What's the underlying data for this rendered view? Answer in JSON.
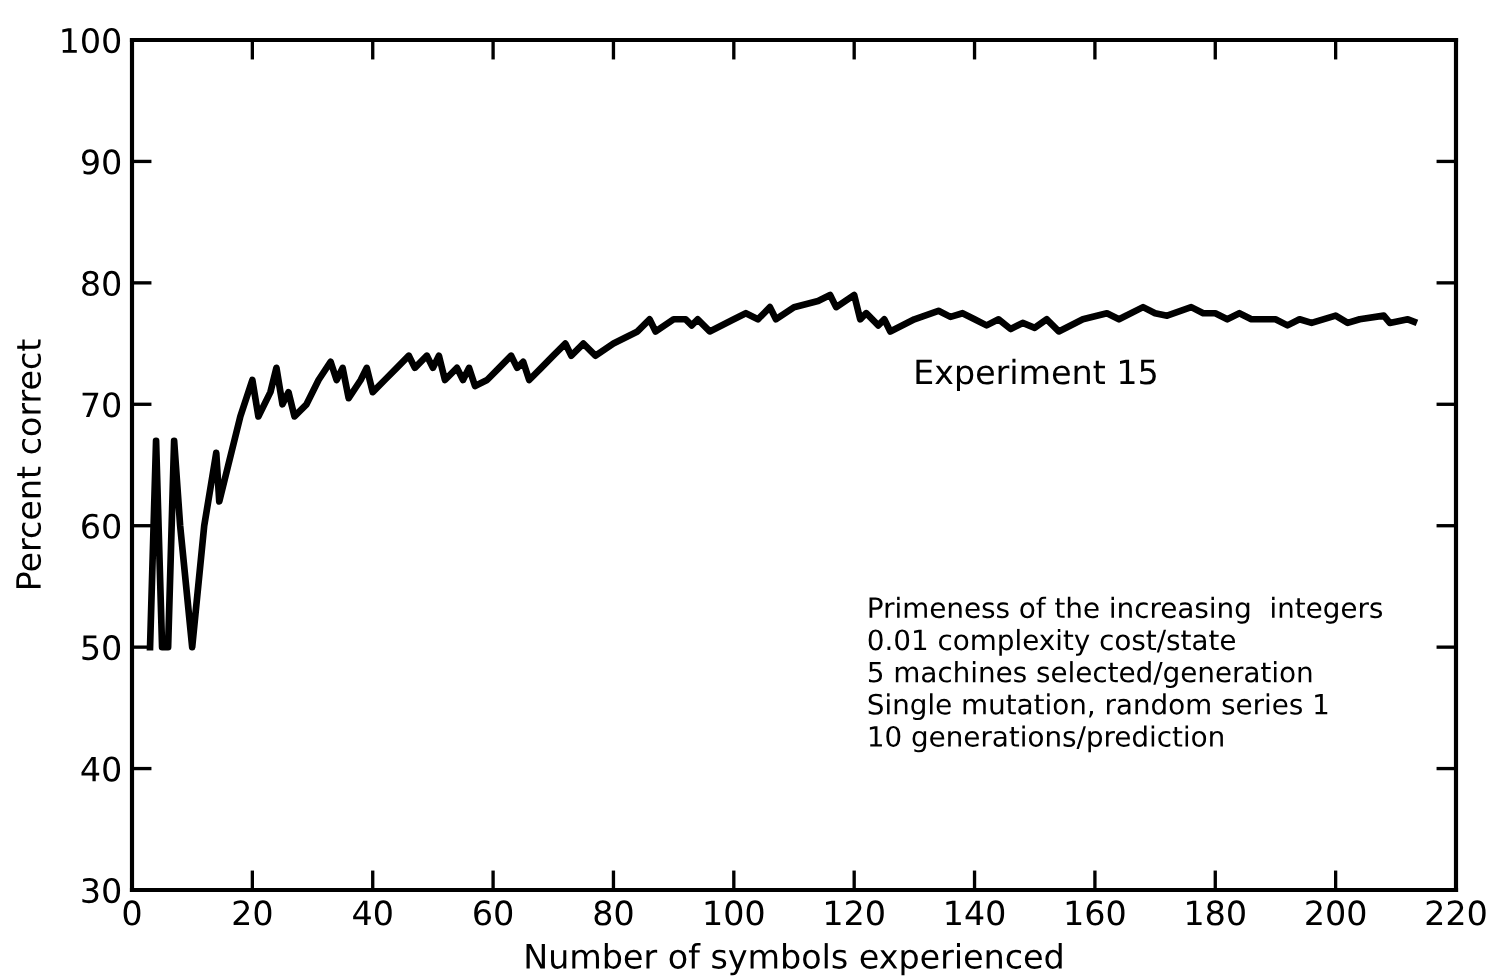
{
  "chart_data": {
    "type": "line",
    "xlabel": "Number of symbols experienced",
    "ylabel": "Percent correct",
    "xlim": [
      0,
      220
    ],
    "xticks": [
      0,
      20,
      40,
      60,
      80,
      100,
      120,
      140,
      160,
      180,
      200,
      220
    ],
    "ylim": [
      30,
      100
    ],
    "yticks": [
      30,
      40,
      50,
      60,
      70,
      80,
      90,
      100
    ],
    "grid": false,
    "marker": "none",
    "line_style": "solid",
    "series": [
      {
        "color": "#000000",
        "x": [
          3,
          4,
          5,
          6,
          7,
          8,
          9,
          10,
          12,
          14,
          14.5,
          16,
          18,
          20,
          21,
          23,
          24,
          25,
          26,
          27,
          29,
          31,
          33,
          34,
          35,
          36,
          38,
          39,
          40,
          42,
          44,
          46,
          47,
          49,
          50,
          51,
          52,
          54,
          55,
          56,
          57,
          59,
          61,
          63,
          64,
          65,
          66,
          68,
          70,
          72,
          73,
          75,
          77,
          80,
          84,
          86,
          87,
          90,
          92,
          93,
          94,
          96,
          100,
          102,
          104,
          106,
          107,
          110,
          114,
          116,
          117,
          120,
          121,
          122,
          124,
          125,
          126,
          130,
          134,
          136,
          138,
          140,
          142,
          144,
          146,
          148,
          150,
          152,
          154,
          158,
          162,
          164,
          168,
          170,
          172,
          176,
          178,
          180,
          182,
          184,
          186,
          190,
          192,
          194,
          196,
          200,
          202,
          204,
          208,
          209,
          212,
          213
        ],
        "values": [
          50,
          67,
          50,
          50,
          67,
          60,
          55,
          50,
          60,
          66,
          62,
          65,
          69,
          72,
          69,
          71,
          73,
          70,
          71,
          69,
          70,
          72,
          73.5,
          72,
          73,
          70.5,
          72,
          73,
          71,
          72,
          73,
          74,
          73,
          74,
          73,
          74,
          72,
          73,
          72,
          73,
          71.5,
          72,
          73,
          74,
          73,
          73.5,
          72,
          73,
          74,
          75,
          74,
          75,
          74,
          75,
          76,
          77,
          76,
          77,
          77,
          76.5,
          77,
          76,
          77,
          77.5,
          77,
          78,
          77,
          78,
          78.5,
          79,
          78,
          79,
          77,
          77.5,
          76.5,
          77,
          76,
          77,
          77.7,
          77.2,
          77.5,
          77,
          76.5,
          77,
          76.2,
          76.7,
          76.3,
          77,
          76,
          77,
          77.5,
          77,
          78,
          77.5,
          77.3,
          78,
          77.5,
          77.5,
          77,
          77.5,
          77,
          77,
          76.5,
          77,
          76.7,
          77.3,
          76.7,
          77,
          77.3,
          76.7,
          77,
          76.8
        ]
      }
    ],
    "annotations": [
      "Experiment 15",
      "Primeness of the increasing  integers\n0.01 complexity cost/state\n5 machines selected/generation\nSingle mutation, random series 1\n10 generations/prediction"
    ]
  }
}
